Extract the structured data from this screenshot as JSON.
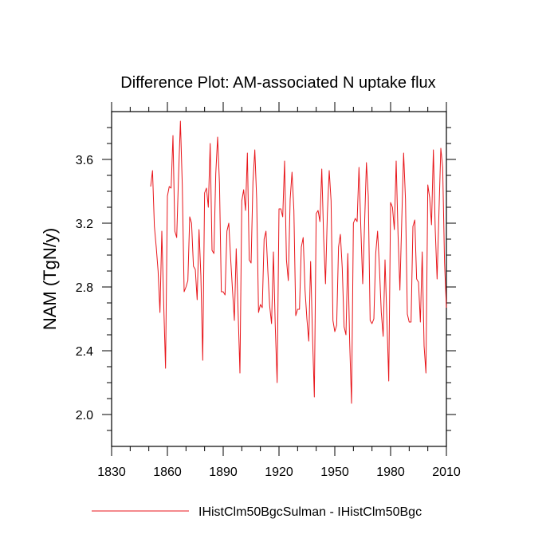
{
  "chart_data": {
    "type": "line",
    "title": "Difference Plot: AM-associated N uptake flux",
    "xlabel": "",
    "ylabel": "NAM  (TgN/y)",
    "xlim": [
      1830,
      2010
    ],
    "ylim": [
      1.8,
      3.9
    ],
    "xticks": [
      1830,
      1860,
      1890,
      1920,
      1950,
      1980,
      2010
    ],
    "yticks": [
      2.0,
      2.4,
      2.8,
      3.2,
      3.6
    ],
    "ytick_labels": [
      "2.0",
      "2.4",
      "2.8",
      "3.2",
      "3.6"
    ],
    "grid": false,
    "legend_position": "bottom",
    "series": [
      {
        "name": "IHistClm50BgcSulman - IHistClm50Bgc",
        "color": "#e8161b",
        "x": [
          1851,
          1852,
          1853,
          1854,
          1855,
          1856,
          1857,
          1858,
          1859,
          1860,
          1861,
          1862,
          1863,
          1864,
          1865,
          1866,
          1867,
          1868,
          1869,
          1870,
          1871,
          1872,
          1873,
          1874,
          1875,
          1876,
          1877,
          1878,
          1879,
          1880,
          1881,
          1882,
          1883,
          1884,
          1885,
          1886,
          1887,
          1888,
          1889,
          1890,
          1891,
          1892,
          1893,
          1894,
          1895,
          1896,
          1897,
          1898,
          1899,
          1900,
          1901,
          1902,
          1903,
          1904,
          1905,
          1906,
          1907,
          1908,
          1909,
          1910,
          1911,
          1912,
          1913,
          1914,
          1915,
          1916,
          1917,
          1918,
          1919,
          1920,
          1921,
          1922,
          1923,
          1924,
          1925,
          1926,
          1927,
          1928,
          1929,
          1930,
          1931,
          1932,
          1933,
          1934,
          1935,
          1936,
          1937,
          1938,
          1939,
          1940,
          1941,
          1942,
          1943,
          1944,
          1945,
          1946,
          1947,
          1948,
          1949,
          1950,
          1951,
          1952,
          1953,
          1954,
          1955,
          1956,
          1957,
          1958,
          1959,
          1960,
          1961,
          1962,
          1963,
          1964,
          1965,
          1966,
          1967,
          1968,
          1969,
          1970,
          1971,
          1972,
          1973,
          1974,
          1975,
          1976,
          1977,
          1978,
          1979,
          1980,
          1981,
          1982,
          1983,
          1984,
          1985,
          1986,
          1987,
          1988,
          1989,
          1990,
          1991,
          1992,
          1993,
          1994,
          1995,
          1996,
          1997,
          1998,
          1999,
          2000,
          2001,
          2002,
          2003,
          2004,
          2005,
          2006,
          2007,
          2008,
          2009,
          2010
        ],
        "values": [
          3.43,
          3.53,
          3.18,
          3.05,
          2.9,
          2.64,
          3.15,
          2.7,
          2.29,
          3.37,
          3.43,
          3.42,
          3.75,
          3.15,
          3.11,
          3.5,
          3.84,
          3.44,
          2.77,
          2.8,
          2.84,
          3.24,
          3.2,
          2.93,
          2.91,
          2.72,
          3.16,
          2.87,
          2.34,
          3.39,
          3.42,
          3.3,
          3.7,
          3.03,
          3.01,
          3.51,
          3.74,
          3.45,
          2.77,
          2.77,
          2.75,
          3.15,
          3.2,
          2.98,
          2.78,
          2.59,
          3.04,
          2.65,
          2.26,
          3.34,
          3.41,
          3.28,
          3.64,
          2.97,
          2.95,
          3.46,
          3.66,
          3.35,
          2.64,
          2.69,
          2.67,
          3.1,
          3.15,
          2.9,
          2.68,
          2.57,
          3.02,
          2.55,
          2.2,
          3.29,
          3.29,
          3.24,
          3.59,
          2.97,
          2.84,
          3.35,
          3.52,
          3.28,
          2.62,
          2.66,
          2.66,
          3.05,
          3.11,
          2.78,
          2.6,
          2.46,
          2.96,
          2.5,
          2.11,
          3.26,
          3.28,
          3.21,
          3.54,
          3.11,
          2.82,
          3.26,
          3.53,
          3.34,
          2.59,
          2.52,
          2.56,
          3.05,
          3.13,
          2.92,
          2.55,
          2.5,
          3.01,
          2.45,
          2.07,
          3.2,
          3.23,
          3.21,
          3.55,
          3.17,
          2.82,
          3.19,
          3.58,
          3.37,
          2.59,
          2.57,
          2.6,
          3.01,
          3.15,
          2.92,
          2.64,
          2.49,
          2.97,
          2.6,
          2.21,
          3.33,
          3.3,
          3.16,
          3.59,
          3.13,
          2.78,
          3.22,
          3.64,
          3.35,
          2.63,
          2.58,
          2.58,
          3.18,
          3.22,
          2.85,
          2.83,
          2.58,
          3.02,
          2.43,
          2.26,
          3.44,
          3.36,
          3.19,
          3.66,
          3.16,
          2.85,
          3.27,
          3.67,
          3.55,
          2.95,
          2.67
        ]
      }
    ]
  }
}
